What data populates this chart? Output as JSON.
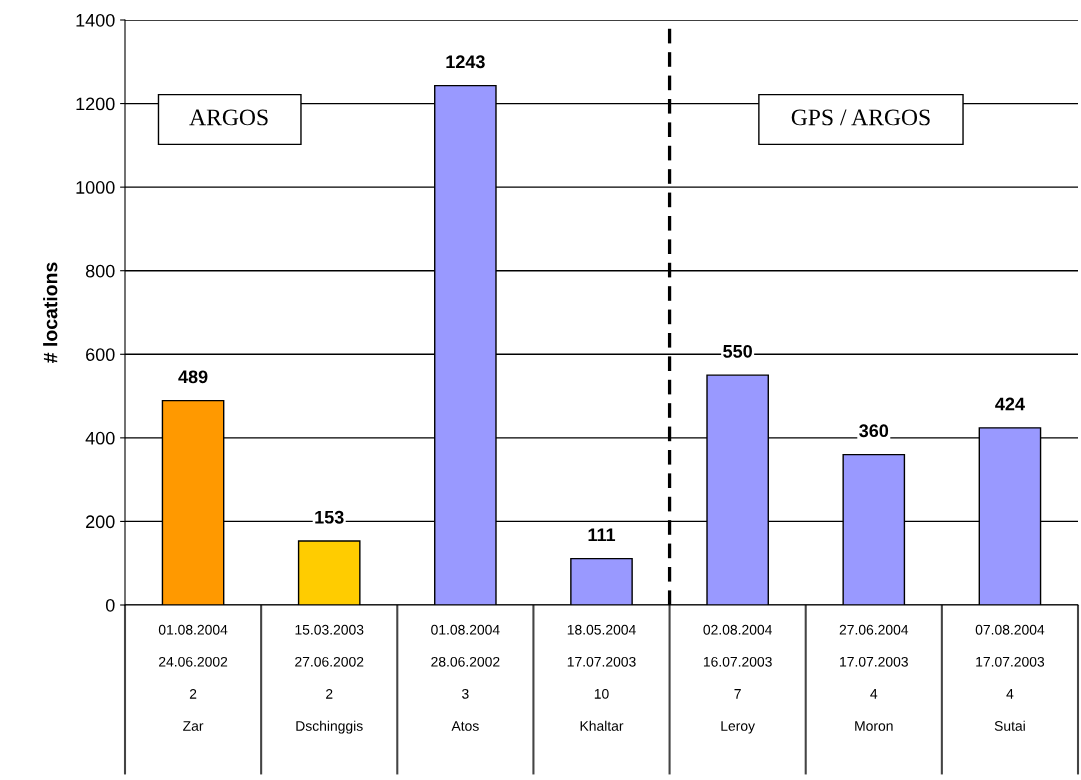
{
  "chart_data": {
    "type": "bar",
    "ylabel": "# locations",
    "categories": [
      "01.08.2004\n24.06.2002\n2\nZar",
      "15.03.2003\n27.06.2002\n2\nDschinggis",
      "01.08.2004\n28.06.2002\n3\nAtos",
      "18.05.2004\n17.07.2003\n10\nKhaltar",
      "02.08.2004\n16.07.2003\n7\nLeroy",
      "27.06.2004\n17.07.2003\n4\nMoron",
      "07.08.2004\n17.07.2003\n4\nSutai"
    ],
    "values": [
      489,
      153,
      1243,
      111,
      550,
      360,
      424
    ],
    "colors": [
      "#ff9900",
      "#ffcc00",
      "#9999ff",
      "#9999ff",
      "#9999ff",
      "#9999ff",
      "#9999ff"
    ],
    "ylim": [
      0,
      1400
    ],
    "yticks": [
      0,
      200,
      400,
      600,
      800,
      1000,
      1200,
      1400
    ],
    "grid": "y",
    "data_labels": true,
    "annotations": [
      "ARGOS",
      "GPS / ARGOS"
    ]
  }
}
